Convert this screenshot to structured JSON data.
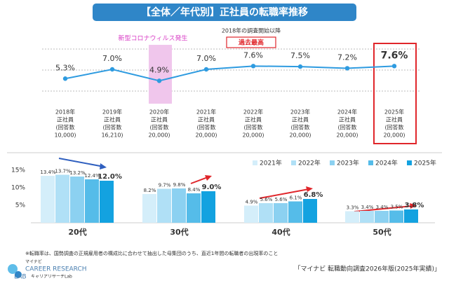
{
  "title": "【全体／年代別】正社員の転職率推移",
  "chart_data": [
    {
      "type": "line",
      "color": "#2e9be0",
      "categories": [
        [
          "2018年",
          "正社員",
          "(回答数",
          "10,000)"
        ],
        [
          "2019年",
          "正社員",
          "(回答数",
          "16,210)"
        ],
        [
          "2020年",
          "正社員",
          "(回答数",
          "20,000)"
        ],
        [
          "2021年",
          "正社員",
          "(回答数",
          "20,000)"
        ],
        [
          "2022年",
          "正社員",
          "(回答数",
          "20,000)"
        ],
        [
          "2023年",
          "正社員",
          "(回答数",
          "20,000)"
        ],
        [
          "2024年",
          "正社員",
          "(回答数",
          "20,000)"
        ],
        [
          "2025年",
          "正社員",
          "(回答数",
          "20,000)"
        ]
      ],
      "values": [
        5.3,
        7.0,
        4.9,
        7.0,
        7.6,
        7.5,
        7.2,
        7.6
      ],
      "value_labels": [
        "5.3%",
        "7.0%",
        "4.9%",
        "7.0%",
        "7.6%",
        "7.5%",
        "7.2%",
        "7.6%"
      ],
      "ylim": [
        2,
        12
      ],
      "annotations": [
        "新型コロナウィルス発生",
        "2018年の調査開始以降",
        "過去最高"
      ]
    },
    {
      "type": "bar",
      "categories": [
        "20代",
        "30代",
        "40代",
        "50代"
      ],
      "series": [
        {
          "name": "2021年",
          "color": "#d4eefa",
          "values": [
            13.4,
            8.2,
            4.9,
            3.3
          ],
          "value_labels": [
            "13.4%",
            "8.2%",
            "4.9%",
            "3.3%"
          ]
        },
        {
          "name": "2022年",
          "color": "#b0e0f6",
          "values": [
            13.7,
            9.7,
            5.6,
            3.4
          ],
          "value_labels": [
            "13.7%",
            "9.7%",
            "5.6%",
            "3.4%"
          ]
        },
        {
          "name": "2023年",
          "color": "#8cd1f1",
          "values": [
            13.2,
            9.8,
            5.6,
            3.4
          ],
          "value_labels": [
            "13.2%",
            "9.8%",
            "5.6%",
            "3.4%"
          ]
        },
        {
          "name": "2024年",
          "color": "#55bce9",
          "values": [
            12.4,
            8.4,
            6.1,
            3.5
          ],
          "value_labels": [
            "12.4%",
            "8.4%",
            "6.1%",
            "3.5%"
          ]
        },
        {
          "name": "2025年",
          "color": "#13a2e0",
          "values": [
            12.0,
            9.0,
            6.8,
            3.8
          ],
          "value_labels": [
            "12.0%",
            "9.0%",
            "6.8%",
            "3.8%"
          ]
        }
      ],
      "ylim": [
        0,
        15
      ],
      "yticks": [
        {
          "value": 5,
          "label": "5%"
        },
        {
          "value": 10,
          "label": "10%"
        },
        {
          "value": 15,
          "label": "15%"
        }
      ]
    }
  ],
  "footnote": "※転職率は、国勢調査の正規雇用者の構成比に合わせて抽出した母集団のうち、直近1年間の転職者の出現率のこと",
  "logo": {
    "brand": "マイナビ",
    "name1": "CAREER RESEARCH",
    "name2": "LAB",
    "sub": "キャリアリサーチLab"
  },
  "source": "「マイナビ 転職動向調査2026年版(2025年実績)」"
}
